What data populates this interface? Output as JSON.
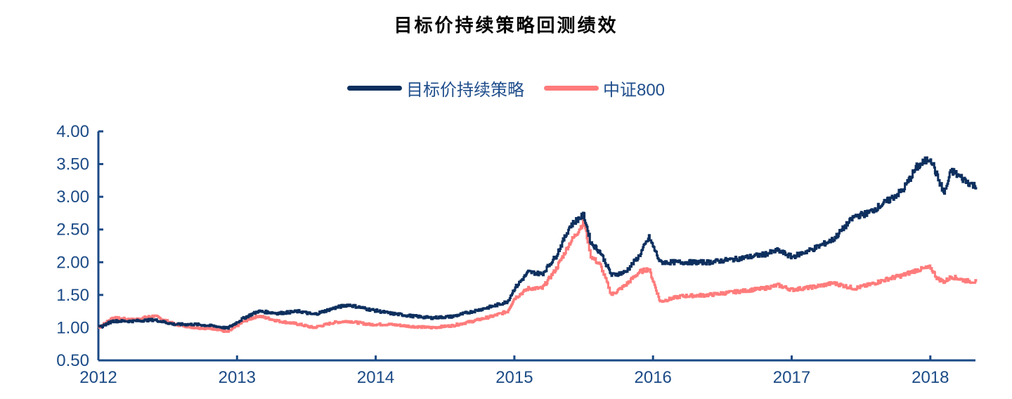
{
  "title": "目标价持续策略回测绩效",
  "legend": [
    {
      "label": "目标价持续策略",
      "color": "#0d2f5e"
    },
    {
      "label": "中证800",
      "color": "#ff7b7b"
    }
  ],
  "axis_color": "#1b4a86",
  "chart_data": {
    "type": "line",
    "title": "目标价持续策略回测绩效",
    "xlabel": "",
    "ylabel": "",
    "ylim": [
      0.5,
      4.0
    ],
    "yticks": [
      "0.50",
      "1.00",
      "1.50",
      "2.00",
      "2.50",
      "3.00",
      "3.50",
      "4.00"
    ],
    "xticks": [
      "2012",
      "2013",
      "2014",
      "2015",
      "2016",
      "2017",
      "2018"
    ],
    "xlim": [
      2012.0,
      2018.33
    ],
    "grid": false,
    "legend_position": "top",
    "x": [
      2012.0,
      2012.1,
      2012.25,
      2012.4,
      2012.55,
      2012.7,
      2012.85,
      2012.93,
      2013.05,
      2013.15,
      2013.3,
      2013.45,
      2013.55,
      2013.7,
      2013.8,
      2013.95,
      2014.1,
      2014.25,
      2014.4,
      2014.55,
      2014.7,
      2014.85,
      2014.95,
      2015.0,
      2015.1,
      2015.2,
      2015.3,
      2015.4,
      2015.45,
      2015.5,
      2015.55,
      2015.62,
      2015.7,
      2015.8,
      2015.9,
      2015.97,
      2016.05,
      2016.2,
      2016.4,
      2016.6,
      2016.8,
      2016.9,
      2017.0,
      2017.15,
      2017.3,
      2017.45,
      2017.55,
      2017.7,
      2017.8,
      2017.9,
      2018.0,
      2018.05,
      2018.1,
      2018.15,
      2018.25,
      2018.33
    ],
    "series": [
      {
        "name": "目标价持续策略",
        "color": "#0d2f5e",
        "values": [
          1.0,
          1.1,
          1.1,
          1.12,
          1.05,
          1.05,
          1.02,
          0.99,
          1.15,
          1.25,
          1.22,
          1.25,
          1.2,
          1.3,
          1.35,
          1.28,
          1.22,
          1.18,
          1.15,
          1.17,
          1.25,
          1.33,
          1.4,
          1.6,
          1.85,
          1.82,
          2.1,
          2.55,
          2.65,
          2.72,
          2.3,
          2.15,
          1.8,
          1.85,
          2.1,
          2.38,
          2.0,
          2.0,
          2.0,
          2.05,
          2.12,
          2.18,
          2.08,
          2.2,
          2.35,
          2.7,
          2.75,
          2.95,
          3.1,
          3.45,
          3.6,
          3.3,
          3.05,
          3.4,
          3.25,
          3.15
        ]
      },
      {
        "name": "中证800",
        "color": "#ff7b7b",
        "values": [
          1.0,
          1.15,
          1.12,
          1.18,
          1.05,
          1.0,
          0.98,
          0.93,
          1.1,
          1.18,
          1.1,
          1.05,
          1.0,
          1.08,
          1.1,
          1.05,
          1.05,
          1.02,
          1.0,
          1.03,
          1.1,
          1.18,
          1.25,
          1.45,
          1.6,
          1.6,
          1.9,
          2.3,
          2.45,
          2.62,
          2.1,
          1.95,
          1.5,
          1.65,
          1.85,
          1.9,
          1.4,
          1.48,
          1.5,
          1.55,
          1.6,
          1.65,
          1.58,
          1.62,
          1.68,
          1.6,
          1.65,
          1.75,
          1.8,
          1.88,
          1.92,
          1.75,
          1.7,
          1.78,
          1.72,
          1.7
        ]
      }
    ]
  }
}
